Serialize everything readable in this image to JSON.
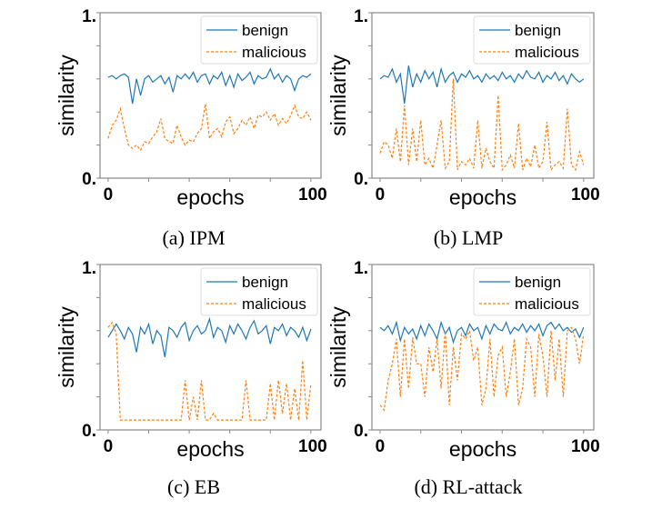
{
  "chart_data": [
    {
      "type": "line",
      "caption": "(a) IPM",
      "xlabel": "epochs",
      "ylabel": "similarity",
      "xlim": [
        -4,
        105
      ],
      "ylim": [
        0,
        1
      ],
      "xtick_labels": [
        "0",
        "100"
      ],
      "ytick_labels": [
        "0.",
        "1."
      ],
      "legend": "top-right",
      "grid": false,
      "x_step": 2,
      "series": [
        {
          "name": "benign",
          "color": "#1f77b4",
          "style": "solid",
          "values": [
            0.61,
            0.62,
            0.6,
            0.62,
            0.63,
            0.61,
            0.45,
            0.6,
            0.5,
            0.6,
            0.62,
            0.58,
            0.6,
            0.62,
            0.57,
            0.61,
            0.52,
            0.62,
            0.6,
            0.63,
            0.6,
            0.64,
            0.58,
            0.62,
            0.63,
            0.57,
            0.62,
            0.6,
            0.64,
            0.56,
            0.62,
            0.55,
            0.63,
            0.59,
            0.61,
            0.64,
            0.57,
            0.62,
            0.6,
            0.61,
            0.66,
            0.6,
            0.63,
            0.58,
            0.62,
            0.6,
            0.53,
            0.6,
            0.62,
            0.61,
            0.63
          ]
        },
        {
          "name": "malicious",
          "color": "#ff7f0e",
          "style": "dashed",
          "values": [
            0.24,
            0.32,
            0.35,
            0.42,
            0.3,
            0.2,
            0.18,
            0.2,
            0.17,
            0.22,
            0.21,
            0.25,
            0.28,
            0.36,
            0.24,
            0.22,
            0.21,
            0.32,
            0.25,
            0.2,
            0.23,
            0.22,
            0.27,
            0.3,
            0.45,
            0.24,
            0.28,
            0.3,
            0.25,
            0.34,
            0.37,
            0.27,
            0.3,
            0.35,
            0.32,
            0.37,
            0.3,
            0.38,
            0.37,
            0.4,
            0.35,
            0.39,
            0.32,
            0.36,
            0.33,
            0.38,
            0.44,
            0.37,
            0.36,
            0.4,
            0.35
          ]
        }
      ]
    },
    {
      "type": "line",
      "caption": "(b) LMP",
      "xlabel": "epochs",
      "ylabel": "similarity",
      "xlim": [
        -4,
        105
      ],
      "ylim": [
        0,
        1
      ],
      "xtick_labels": [
        "0",
        "100"
      ],
      "ytick_labels": [
        "0.",
        "1."
      ],
      "legend": "top-right",
      "grid": false,
      "x_step": 2,
      "series": [
        {
          "name": "benign",
          "color": "#1f77b4",
          "style": "solid",
          "values": [
            0.6,
            0.62,
            0.61,
            0.66,
            0.58,
            0.63,
            0.45,
            0.68,
            0.55,
            0.63,
            0.58,
            0.65,
            0.6,
            0.64,
            0.55,
            0.66,
            0.58,
            0.62,
            0.64,
            0.58,
            0.63,
            0.61,
            0.65,
            0.6,
            0.62,
            0.58,
            0.63,
            0.6,
            0.62,
            0.59,
            0.64,
            0.6,
            0.62,
            0.58,
            0.63,
            0.6,
            0.65,
            0.61,
            0.6,
            0.64,
            0.58,
            0.62,
            0.6,
            0.64,
            0.59,
            0.62,
            0.57,
            0.63,
            0.6,
            0.58,
            0.6
          ]
        },
        {
          "name": "malicious",
          "color": "#ff7f0e",
          "style": "dashed",
          "values": [
            0.15,
            0.22,
            0.2,
            0.12,
            0.3,
            0.1,
            0.44,
            0.08,
            0.3,
            0.1,
            0.35,
            0.08,
            0.12,
            0.06,
            0.2,
            0.35,
            0.06,
            0.1,
            0.6,
            0.05,
            0.1,
            0.08,
            0.12,
            0.06,
            0.35,
            0.06,
            0.18,
            0.1,
            0.06,
            0.5,
            0.05,
            0.08,
            0.14,
            0.06,
            0.33,
            0.05,
            0.12,
            0.07,
            0.2,
            0.06,
            0.1,
            0.34,
            0.05,
            0.08,
            0.1,
            0.06,
            0.42,
            0.08,
            0.05,
            0.16,
            0.08
          ]
        }
      ]
    },
    {
      "type": "line",
      "caption": "(c) EB",
      "xlabel": "epochs",
      "ylabel": "similarity",
      "xlim": [
        -4,
        105
      ],
      "ylim": [
        0,
        1
      ],
      "xtick_labels": [
        "0",
        "100"
      ],
      "ytick_labels": [
        "0.",
        "1."
      ],
      "legend": "top-right",
      "grid": false,
      "x_step": 2,
      "series": [
        {
          "name": "benign",
          "color": "#1f77b4",
          "style": "solid",
          "values": [
            0.56,
            0.6,
            0.64,
            0.6,
            0.55,
            0.62,
            0.58,
            0.47,
            0.62,
            0.58,
            0.64,
            0.52,
            0.6,
            0.57,
            0.44,
            0.62,
            0.6,
            0.56,
            0.62,
            0.65,
            0.54,
            0.6,
            0.63,
            0.58,
            0.6,
            0.67,
            0.56,
            0.62,
            0.6,
            0.53,
            0.63,
            0.58,
            0.64,
            0.6,
            0.55,
            0.62,
            0.66,
            0.58,
            0.6,
            0.63,
            0.52,
            0.62,
            0.6,
            0.64,
            0.57,
            0.62,
            0.6,
            0.56,
            0.62,
            0.54,
            0.61
          ]
        },
        {
          "name": "malicious",
          "color": "#ff7f0e",
          "style": "dashed",
          "values": [
            0.62,
            0.65,
            0.58,
            0.06,
            0.06,
            0.06,
            0.06,
            0.06,
            0.06,
            0.06,
            0.06,
            0.06,
            0.06,
            0.06,
            0.06,
            0.06,
            0.06,
            0.06,
            0.06,
            0.3,
            0.06,
            0.2,
            0.06,
            0.3,
            0.06,
            0.06,
            0.1,
            0.06,
            0.06,
            0.06,
            0.06,
            0.06,
            0.06,
            0.06,
            0.3,
            0.06,
            0.06,
            0.06,
            0.06,
            0.06,
            0.28,
            0.06,
            0.3,
            0.1,
            0.28,
            0.06,
            0.25,
            0.06,
            0.42,
            0.06,
            0.28
          ]
        }
      ]
    },
    {
      "type": "line",
      "caption": "(d) RL-attack",
      "xlabel": "epochs",
      "ylabel": "similarity",
      "xlim": [
        -4,
        105
      ],
      "ylim": [
        0,
        1
      ],
      "xtick_labels": [
        "0",
        "100"
      ],
      "ytick_labels": [
        "0.",
        "1."
      ],
      "legend": "top-right",
      "grid": false,
      "x_step": 2,
      "series": [
        {
          "name": "benign",
          "color": "#1f77b4",
          "style": "solid",
          "values": [
            0.62,
            0.6,
            0.63,
            0.58,
            0.65,
            0.54,
            0.62,
            0.58,
            0.61,
            0.55,
            0.63,
            0.57,
            0.64,
            0.6,
            0.55,
            0.65,
            0.58,
            0.62,
            0.53,
            0.6,
            0.62,
            0.57,
            0.64,
            0.6,
            0.62,
            0.55,
            0.63,
            0.58,
            0.64,
            0.61,
            0.6,
            0.65,
            0.58,
            0.62,
            0.6,
            0.64,
            0.59,
            0.63,
            0.6,
            0.64,
            0.57,
            0.63,
            0.65,
            0.61,
            0.64,
            0.6,
            0.62,
            0.59,
            0.61,
            0.56,
            0.62
          ]
        },
        {
          "name": "malicious",
          "color": "#ff7f0e",
          "style": "dashed",
          "values": [
            0.15,
            0.12,
            0.3,
            0.4,
            0.55,
            0.2,
            0.55,
            0.25,
            0.56,
            0.4,
            0.4,
            0.2,
            0.5,
            0.35,
            0.55,
            0.25,
            0.6,
            0.15,
            0.5,
            0.3,
            0.58,
            0.55,
            0.6,
            0.42,
            0.5,
            0.15,
            0.25,
            0.55,
            0.2,
            0.45,
            0.5,
            0.2,
            0.35,
            0.55,
            0.15,
            0.25,
            0.55,
            0.5,
            0.2,
            0.58,
            0.45,
            0.2,
            0.6,
            0.3,
            0.55,
            0.2,
            0.6,
            0.62,
            0.55,
            0.4,
            0.58
          ]
        }
      ]
    }
  ]
}
